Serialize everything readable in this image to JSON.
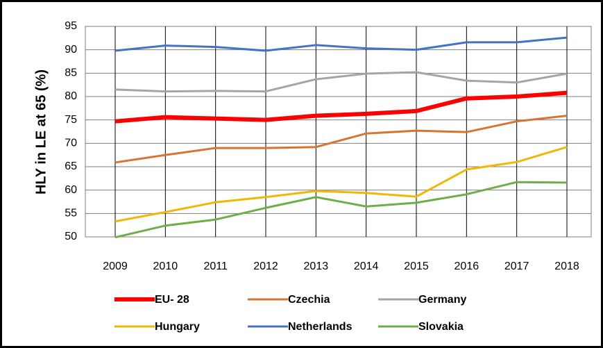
{
  "chart_data": {
    "type": "line",
    "y_label": "HLY in LE at 65 (%)",
    "categories": [
      "2009",
      "2010",
      "2011",
      "2012",
      "2013",
      "2014",
      "2015",
      "2016",
      "2017",
      "2018"
    ],
    "series": [
      {
        "name": "EU- 28",
        "color": "#ff0000",
        "values": [
          74.7,
          75.6,
          75.3,
          75.0,
          75.9,
          76.3,
          76.9,
          79.6,
          80.0,
          80.8
        ]
      },
      {
        "name": "Czechia",
        "color": "#d7742f",
        "values": [
          65.9,
          67.5,
          69.0,
          69.0,
          69.2,
          72.1,
          72.7,
          72.4,
          74.7,
          75.9
        ]
      },
      {
        "name": "Germany",
        "color": "#a5a5a5",
        "values": [
          81.5,
          81.1,
          81.2,
          81.1,
          83.7,
          84.9,
          85.2,
          83.4,
          83.0,
          84.9
        ]
      },
      {
        "name": "Hungary",
        "color": "#f2b705",
        "values": [
          53.3,
          55.3,
          57.4,
          58.5,
          59.8,
          59.4,
          58.6,
          64.4,
          66.0,
          69.2
        ]
      },
      {
        "name": "Netherlands",
        "color": "#4472c4",
        "values": [
          89.8,
          90.9,
          90.6,
          89.8,
          91.0,
          90.3,
          90.0,
          91.6,
          91.6,
          92.6
        ]
      },
      {
        "name": "Slovakia",
        "color": "#70ad47",
        "values": [
          49.9,
          52.4,
          53.7,
          56.2,
          58.5,
          56.5,
          57.3,
          59.1,
          61.7,
          61.6
        ]
      }
    ],
    "ylim": [
      50,
      95
    ],
    "yticks": [
      50,
      55,
      60,
      65,
      70,
      75,
      80,
      85,
      90,
      95
    ],
    "grid": true,
    "legend": "bottom"
  }
}
